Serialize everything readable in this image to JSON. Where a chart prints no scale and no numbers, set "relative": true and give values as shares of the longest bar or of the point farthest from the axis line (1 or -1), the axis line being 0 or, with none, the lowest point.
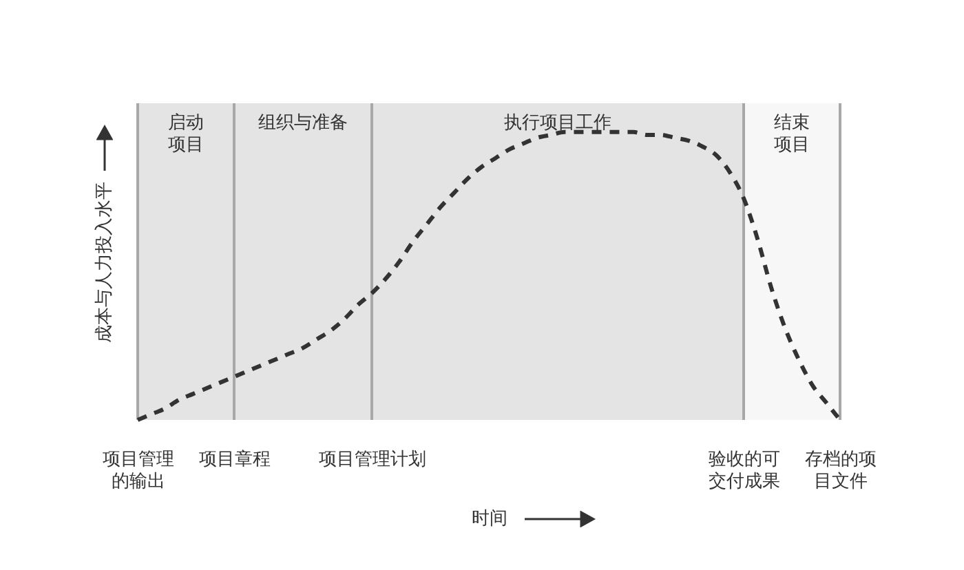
{
  "chart_data": {
    "type": "line",
    "relative": true,
    "xlabel": "时间",
    "ylabel": "成本与人力投入水平",
    "line_style": "dashed",
    "categories": [
      "项目管理的输出",
      null,
      null,
      null,
      null,
      null,
      null,
      "项目章程",
      null,
      null,
      null,
      null,
      null,
      null,
      null,
      null,
      null,
      "项目管理计划",
      null,
      null,
      null,
      null,
      null,
      null,
      null,
      null,
      null,
      null,
      null,
      null,
      null,
      null,
      null,
      null,
      null,
      null,
      null,
      null,
      null,
      null,
      null,
      null,
      null,
      null,
      "验收的可交付成果",
      null,
      null,
      null,
      null,
      null,
      null,
      "存档的项目文件"
    ],
    "series": [
      {
        "color": "#333333",
        "values": [
          0,
          0.02,
          0.04,
          0.07,
          0.09,
          0.11,
          0.13,
          0.15,
          0.17,
          0.19,
          0.21,
          0.23,
          0.25,
          0.28,
          0.31,
          0.35,
          0.4,
          0.44,
          0.49,
          0.55,
          0.62,
          0.68,
          0.74,
          0.79,
          0.84,
          0.88,
          0.91,
          0.94,
          0.96,
          0.98,
          0.99,
          1,
          1,
          1,
          1,
          1,
          1,
          0.99,
          0.99,
          0.98,
          0.97,
          0.95,
          0.92,
          0.86,
          0.77,
          0.63,
          0.46,
          0.32,
          0.21,
          0.12,
          0.06,
          0
        ]
      }
    ],
    "bands": [
      {
        "axis": "x",
        "from": "项目管理的输出",
        "to": "项目章程",
        "label": "启动项目",
        "color": "#e4e4e4"
      },
      {
        "axis": "x",
        "from": "项目章程",
        "to": "项目管理计划",
        "label": "组织与准备",
        "color": "#e4e4e4"
      },
      {
        "axis": "x",
        "from": "项目管理计划",
        "to": "验收的可交付成果",
        "label": "执行项目工作",
        "color": "#e4e4e4"
      },
      {
        "axis": "x",
        "from": "验收的可交付成果",
        "to": "存档的项目文件",
        "label": "结束项目",
        "color": "#f7f7f7"
      }
    ],
    "ref_lines": [
      {
        "axis": "x",
        "value": "项目管理的输出",
        "color": "#a8a8a8"
      },
      {
        "axis": "x",
        "value": "项目章程",
        "color": "#a8a8a8"
      },
      {
        "axis": "x",
        "value": "项目管理计划",
        "color": "#a8a8a8"
      },
      {
        "axis": "x",
        "value": "验收的可交付成果",
        "color": "#a8a8a8"
      },
      {
        "axis": "x",
        "value": "存档的项目文件",
        "color": "#a8a8a8"
      }
    ]
  }
}
